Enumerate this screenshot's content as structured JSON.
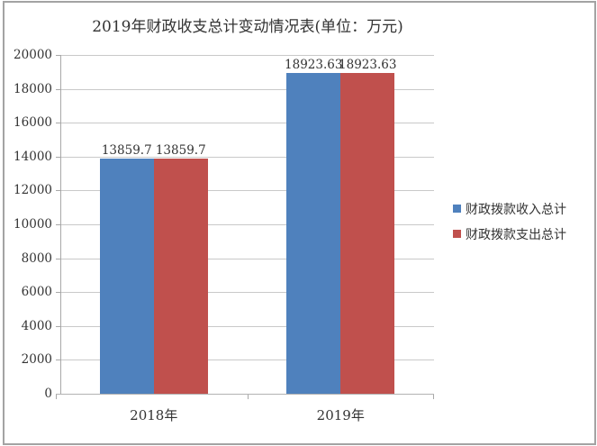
{
  "chart_data": {
    "type": "bar",
    "title": "2019年财政收支总计变动情况表(单位：万元)",
    "categories": [
      "2018年",
      "2019年"
    ],
    "series": [
      {
        "name": "财政拨款收入总计",
        "color": "#4F81BD",
        "values": [
          13859.7,
          18923.63
        ],
        "labels": [
          "13859.7",
          "18923.63"
        ]
      },
      {
        "name": "财政拨款支出总计",
        "color": "#C0504D",
        "values": [
          13859.7,
          18923.63
        ],
        "labels": [
          "13859.7",
          "18923.63"
        ]
      }
    ],
    "ylim": [
      0,
      20000
    ],
    "ytick_interval": 2000,
    "yticks": [
      "0",
      "2000",
      "4000",
      "6000",
      "8000",
      "10000",
      "12000",
      "14000",
      "16000",
      "18000",
      "20000"
    ],
    "xlabel": "",
    "ylabel": "",
    "grid": true,
    "legend_position": "right",
    "colors": {
      "series_income": "#4F81BD",
      "series_expense": "#C0504D",
      "gridline": "#C9C9C9",
      "axis": "#A8A8A8",
      "text": "#333333",
      "frame_border": "#A3A3A3"
    }
  }
}
